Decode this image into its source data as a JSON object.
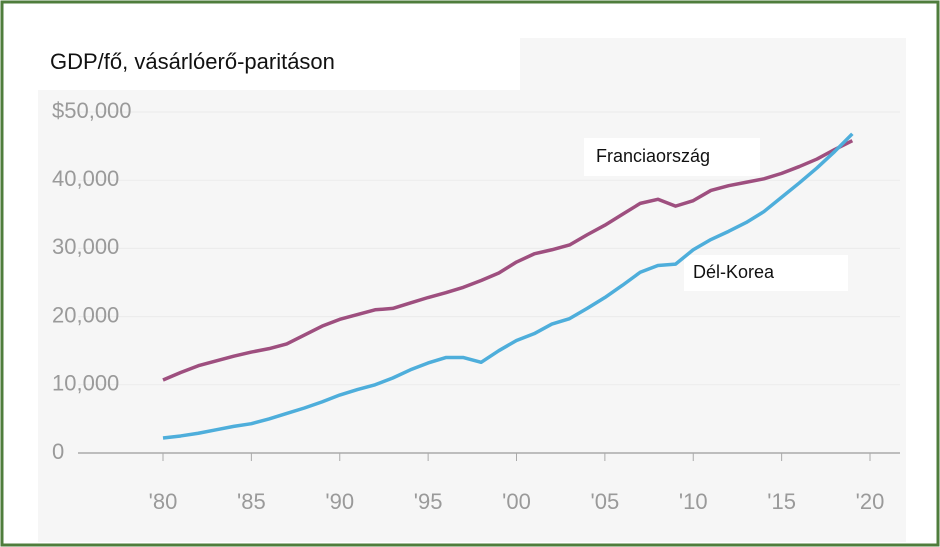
{
  "chart_data": {
    "type": "line",
    "title": "GDP/fő, vásárlóerő-paritáson",
    "x": [
      1980,
      1981,
      1982,
      1983,
      1984,
      1985,
      1986,
      1987,
      1988,
      1989,
      1990,
      1991,
      1992,
      1993,
      1994,
      1995,
      1996,
      1997,
      1998,
      1999,
      2000,
      2001,
      2002,
      2003,
      2004,
      2005,
      2006,
      2007,
      2008,
      2009,
      2010,
      2011,
      2012,
      2013,
      2014,
      2015,
      2016,
      2017,
      2018,
      2019
    ],
    "series": [
      {
        "name": "Franciaország",
        "color": "#9e4f7f",
        "values": [
          10700,
          11800,
          12800,
          13500,
          14200,
          14800,
          15300,
          16000,
          17300,
          18600,
          19600,
          20300,
          21000,
          21200,
          22000,
          22800,
          23500,
          24300,
          25300,
          26400,
          28000,
          29200,
          29800,
          30500,
          32000,
          33400,
          35000,
          36600,
          37200,
          36200,
          37000,
          38500,
          39200,
          39700,
          40200,
          41000,
          42000,
          43100,
          44500,
          45800
        ]
      },
      {
        "name": "Dél-Korea",
        "color": "#4eaedb",
        "values": [
          2200,
          2500,
          2900,
          3400,
          3900,
          4300,
          5000,
          5800,
          6600,
          7500,
          8500,
          9300,
          10000,
          11000,
          12200,
          13200,
          14000,
          14000,
          13300,
          15000,
          16500,
          17500,
          18900,
          19700,
          21200,
          22800,
          24600,
          26500,
          27500,
          27700,
          29800,
          31300,
          32500,
          33800,
          35400,
          37500,
          39600,
          41800,
          44200,
          46800
        ]
      }
    ],
    "xlim": [
      1980,
      2020
    ],
    "xticks": [
      {
        "value": 1980,
        "label": "'80"
      },
      {
        "value": 1985,
        "label": "'85"
      },
      {
        "value": 1990,
        "label": "'90"
      },
      {
        "value": 1995,
        "label": "'95"
      },
      {
        "value": 2000,
        "label": "'00"
      },
      {
        "value": 2005,
        "label": "'05"
      },
      {
        "value": 2010,
        "label": "'10"
      },
      {
        "value": 2015,
        "label": "'15"
      },
      {
        "value": 2020,
        "label": "'20"
      }
    ],
    "ylim": [
      0,
      50000
    ],
    "yticks": [
      0,
      {
        "value": 10000,
        "label": "10,000"
      },
      {
        "value": 20000,
        "label": "20,000"
      },
      {
        "value": 30000,
        "label": "30,000"
      },
      {
        "value": 40000,
        "label": "40,000"
      },
      {
        "value": 50000,
        "label": "$50,000"
      }
    ],
    "grid": true
  }
}
